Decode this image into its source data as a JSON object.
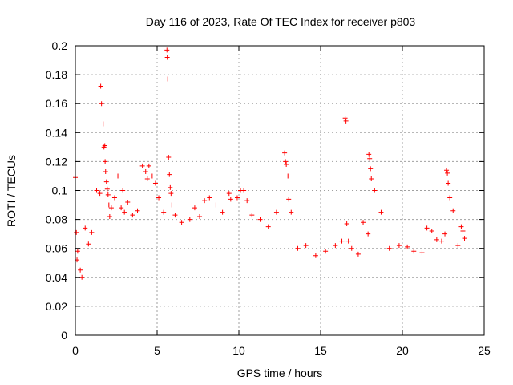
{
  "chart_data": {
    "type": "scatter",
    "title": "Day 116 of 2023, Rate Of TEC Index for receiver p803",
    "xlabel": "GPS time / hours",
    "ylabel": "ROTI / TECUs",
    "xlim": [
      0,
      25
    ],
    "ylim": [
      0,
      0.2
    ],
    "xticks": [
      0,
      5,
      10,
      15,
      20,
      25
    ],
    "yticks": [
      0,
      0.02,
      0.04,
      0.06,
      0.08,
      0.1,
      0.12,
      0.14,
      0.16,
      0.18,
      0.2
    ],
    "grid": true,
    "marker": "+",
    "color": "#ff0000",
    "series": [
      {
        "name": "ROTI",
        "x": [
          0.0,
          0.06,
          0.1,
          0.14,
          0.3,
          0.4,
          0.6,
          0.8,
          1.0,
          1.3,
          1.5,
          1.55,
          1.6,
          1.7,
          1.75,
          1.8,
          1.82,
          1.85,
          1.9,
          1.95,
          2.0,
          2.05,
          2.1,
          2.2,
          2.4,
          2.6,
          2.8,
          2.9,
          3.0,
          3.2,
          3.5,
          3.8,
          4.1,
          4.3,
          4.4,
          4.5,
          4.7,
          4.9,
          5.1,
          5.4,
          5.6,
          5.62,
          5.65,
          5.7,
          5.75,
          5.8,
          5.85,
          5.9,
          6.1,
          6.5,
          7.0,
          7.3,
          7.6,
          7.9,
          8.2,
          8.6,
          9.0,
          9.4,
          9.5,
          9.9,
          10.1,
          10.3,
          10.5,
          10.8,
          11.3,
          11.8,
          12.3,
          12.8,
          12.85,
          12.9,
          13.0,
          13.05,
          13.2,
          13.6,
          14.1,
          14.7,
          15.3,
          15.9,
          16.3,
          16.5,
          16.55,
          16.6,
          16.7,
          16.9,
          17.3,
          17.6,
          17.9,
          17.95,
          18.0,
          18.05,
          18.1,
          18.3,
          18.7,
          19.2,
          19.8,
          20.3,
          20.7,
          21.2,
          21.5,
          21.8,
          22.1,
          22.4,
          22.6,
          22.7,
          22.75,
          22.8,
          22.9,
          23.1,
          23.4,
          23.6,
          23.7,
          23.8
        ],
        "values": [
          0.109,
          0.071,
          0.052,
          0.058,
          0.045,
          0.04,
          0.074,
          0.063,
          0.071,
          0.1,
          0.098,
          0.172,
          0.16,
          0.146,
          0.13,
          0.131,
          0.12,
          0.113,
          0.106,
          0.101,
          0.097,
          0.09,
          0.082,
          0.088,
          0.095,
          0.11,
          0.088,
          0.1,
          0.085,
          0.092,
          0.083,
          0.086,
          0.117,
          0.113,
          0.108,
          0.117,
          0.11,
          0.105,
          0.095,
          0.085,
          0.197,
          0.192,
          0.177,
          0.123,
          0.111,
          0.102,
          0.098,
          0.09,
          0.083,
          0.078,
          0.08,
          0.088,
          0.082,
          0.093,
          0.095,
          0.09,
          0.085,
          0.098,
          0.094,
          0.095,
          0.1,
          0.1,
          0.093,
          0.083,
          0.08,
          0.075,
          0.085,
          0.126,
          0.12,
          0.118,
          0.11,
          0.094,
          0.085,
          0.06,
          0.062,
          0.055,
          0.058,
          0.062,
          0.065,
          0.15,
          0.148,
          0.077,
          0.065,
          0.06,
          0.056,
          0.078,
          0.07,
          0.125,
          0.122,
          0.115,
          0.108,
          0.1,
          0.085,
          0.06,
          0.062,
          0.061,
          0.058,
          0.057,
          0.074,
          0.072,
          0.066,
          0.065,
          0.07,
          0.114,
          0.112,
          0.105,
          0.095,
          0.086,
          0.062,
          0.075,
          0.072,
          0.067
        ]
      }
    ]
  }
}
